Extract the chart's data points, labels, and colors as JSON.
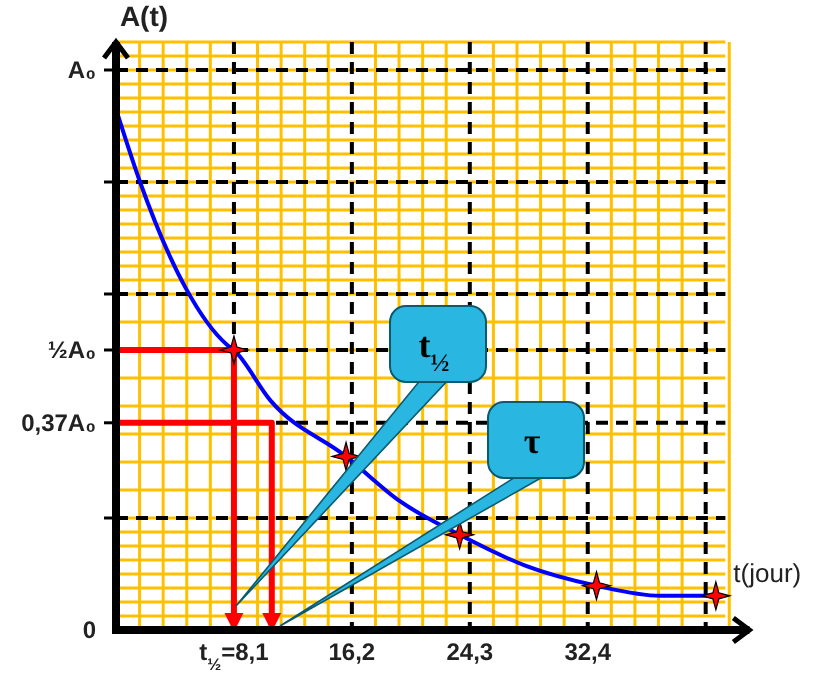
{
  "chart_data": {
    "type": "line",
    "xlabel": "t(jour)",
    "ylabel": "A(t)",
    "xlim": [
      0,
      43.5
    ],
    "ylim": [
      0,
      1.05
    ],
    "xticks": [
      {
        "value": 8.1,
        "label": "t$_{½}$=8,1"
      },
      {
        "value": 16.2,
        "label": "16,2"
      },
      {
        "value": 24.3,
        "label": "24,3"
      },
      {
        "value": 32.4,
        "label": "32,4"
      },
      {
        "value": 40.5,
        "label": null
      }
    ],
    "yticks": [
      0,
      {
        "value": 0.2,
        "label": null
      },
      {
        "value": 0.37,
        "label": "0,37A₀"
      },
      {
        "value": 0.5,
        "label": "½A₀"
      },
      {
        "value": 0.6,
        "label": null
      },
      {
        "value": 0.8,
        "label": null
      },
      {
        "value": 1,
        "label": "A₀"
      }
    ],
    "grid": true,
    "series": [
      {
        "color": "#0000ff",
        "x": [
          0,
          1.65,
          4.8,
          7.6,
          8.1,
          10.6,
          15.8,
          19.5,
          23.6,
          28.2,
          33,
          37.4,
          41.2
        ],
        "values": [
          0.93,
          0.8,
          0.61,
          0.51,
          0.5,
          0.41,
          0.31,
          0.23,
          0.17,
          0.114,
          0.079,
          0.061,
          0.061
        ]
      },
      {
        "color": "#ff0000",
        "x": [
          0,
          8.1,
          8.1
        ],
        "values": [
          0.5,
          0.5,
          0
        ]
      },
      {
        "color": "#ff0000",
        "x": [
          0,
          10.7,
          10.7
        ],
        "values": [
          0.37,
          0.37,
          0
        ]
      },
      {
        "type": "scatter",
        "color": "#ff0000",
        "marker": "cross",
        "x": [
          8.1,
          15.8,
          23.6,
          33,
          41.2
        ],
        "values": [
          0.5,
          0.31,
          0.17,
          0.079,
          0.061
        ]
      }
    ],
    "annotations": [
      "t$_{½}$",
      "τ"
    ]
  }
}
